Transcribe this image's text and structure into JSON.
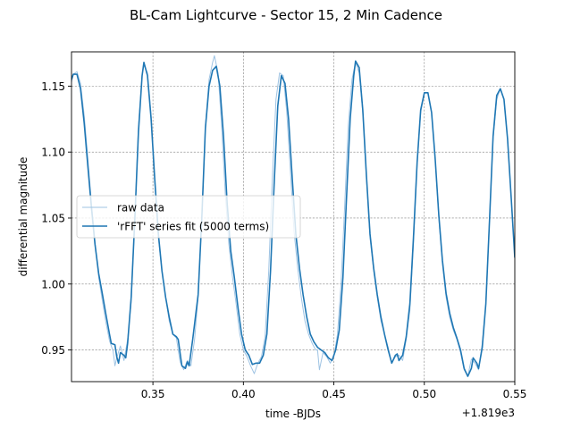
{
  "chart_data": {
    "type": "line",
    "title": "BL-Cam Lightcurve - Sector 15, 2 Min Cadence",
    "xlabel": "time -BJDs",
    "ylabel": "differential magnitude",
    "x_offset_label": "+1.819e3",
    "xlim": [
      0.305,
      0.55
    ],
    "ylim": [
      0.926,
      1.176
    ],
    "x_ticks": [
      0.35,
      0.4,
      0.45,
      0.5,
      0.55
    ],
    "x_tick_labels": [
      "0.35",
      "0.40",
      "0.45",
      "0.50",
      "0.55"
    ],
    "y_ticks": [
      0.95,
      1.0,
      1.05,
      1.1,
      1.15
    ],
    "y_tick_labels": [
      "0.95",
      "1.00",
      "1.05",
      "1.10",
      "1.15"
    ],
    "grid": true,
    "legend_position": "center-left",
    "colors": {
      "raw": "#9ec3e3",
      "fit": "#1f77b4"
    },
    "series": [
      {
        "name": "raw data",
        "points": [
          [
            0.305,
            1.153
          ],
          [
            0.306,
            1.159
          ],
          [
            0.308,
            1.161
          ],
          [
            0.31,
            1.152
          ],
          [
            0.312,
            1.128
          ],
          [
            0.314,
            1.096
          ],
          [
            0.316,
            1.062
          ],
          [
            0.318,
            1.032
          ],
          [
            0.32,
            1.005
          ],
          [
            0.322,
            0.988
          ],
          [
            0.324,
            0.971
          ],
          [
            0.326,
            0.957
          ],
          [
            0.327,
            0.953
          ],
          [
            0.328,
            0.949
          ],
          [
            0.329,
            0.938
          ],
          [
            0.33,
            0.944
          ],
          [
            0.332,
            0.953
          ],
          [
            0.334,
            0.942
          ],
          [
            0.336,
            0.958
          ],
          [
            0.338,
            0.986
          ],
          [
            0.34,
            1.05
          ],
          [
            0.342,
            1.12
          ],
          [
            0.344,
            1.158
          ],
          [
            0.345,
            1.166
          ],
          [
            0.347,
            1.16
          ],
          [
            0.349,
            1.128
          ],
          [
            0.351,
            1.078
          ],
          [
            0.353,
            1.035
          ],
          [
            0.355,
            1.01
          ],
          [
            0.357,
            0.99
          ],
          [
            0.359,
            0.972
          ],
          [
            0.361,
            0.962
          ],
          [
            0.363,
            0.959
          ],
          [
            0.365,
            0.941
          ],
          [
            0.367,
            0.935
          ],
          [
            0.369,
            0.942
          ],
          [
            0.371,
            0.938
          ],
          [
            0.373,
            0.958
          ],
          [
            0.375,
            0.99
          ],
          [
            0.377,
            1.05
          ],
          [
            0.379,
            1.12
          ],
          [
            0.381,
            1.155
          ],
          [
            0.383,
            1.168
          ],
          [
            0.384,
            1.173
          ],
          [
            0.386,
            1.16
          ],
          [
            0.388,
            1.12
          ],
          [
            0.39,
            1.068
          ],
          [
            0.392,
            1.03
          ],
          [
            0.394,
            1.005
          ],
          [
            0.396,
            0.985
          ],
          [
            0.398,
            0.962
          ],
          [
            0.4,
            0.95
          ],
          [
            0.402,
            0.945
          ],
          [
            0.404,
            0.938
          ],
          [
            0.406,
            0.932
          ],
          [
            0.408,
            0.94
          ],
          [
            0.41,
            0.945
          ],
          [
            0.412,
            0.96
          ],
          [
            0.414,
            1.01
          ],
          [
            0.416,
            1.08
          ],
          [
            0.418,
            1.14
          ],
          [
            0.42,
            1.16
          ],
          [
            0.422,
            1.158
          ],
          [
            0.424,
            1.13
          ],
          [
            0.426,
            1.085
          ],
          [
            0.428,
            1.04
          ],
          [
            0.43,
            1.012
          ],
          [
            0.432,
            0.99
          ],
          [
            0.434,
            0.972
          ],
          [
            0.436,
            0.962
          ],
          [
            0.438,
            0.955
          ],
          [
            0.44,
            0.95
          ],
          [
            0.441,
            0.95
          ],
          [
            0.442,
            0.935
          ],
          [
            0.444,
            0.948
          ],
          [
            0.446,
            0.945
          ],
          [
            0.448,
            0.94
          ],
          [
            0.45,
            0.945
          ],
          [
            0.452,
            0.962
          ],
          [
            0.454,
            1.0
          ],
          [
            0.456,
            1.06
          ],
          [
            0.458,
            1.12
          ],
          [
            0.46,
            1.155
          ],
          [
            0.462,
            1.168
          ],
          [
            0.464,
            1.16
          ],
          [
            0.466,
            1.13
          ],
          [
            0.468,
            1.08
          ],
          [
            0.47,
            1.035
          ],
          [
            0.472,
            1.01
          ],
          [
            0.474,
            0.99
          ],
          [
            0.476,
            0.972
          ],
          [
            0.478,
            0.962
          ],
          [
            0.48,
            0.952
          ],
          [
            0.482,
            0.94
          ],
          [
            0.484,
            0.945
          ],
          [
            0.486,
            0.946
          ],
          [
            0.488,
            0.942
          ],
          [
            0.49,
            0.958
          ],
          [
            0.492,
            0.98
          ],
          [
            0.494,
            1.03
          ],
          [
            0.496,
            1.09
          ],
          [
            0.498,
            1.13
          ],
          [
            0.5,
            1.145
          ],
          [
            0.502,
            1.145
          ],
          [
            0.504,
            1.13
          ],
          [
            0.506,
            1.095
          ],
          [
            0.508,
            1.05
          ],
          [
            0.51,
            1.015
          ],
          [
            0.512,
            0.99
          ],
          [
            0.514,
            0.975
          ],
          [
            0.516,
            0.965
          ],
          [
            0.518,
            0.958
          ],
          [
            0.52,
            0.948
          ],
          [
            0.522,
            0.935
          ],
          [
            0.524,
            0.93
          ],
          [
            0.526,
            0.943
          ],
          [
            0.528,
            0.94
          ],
          [
            0.53,
            0.935
          ],
          [
            0.532,
            0.955
          ],
          [
            0.534,
            0.985
          ],
          [
            0.536,
            1.05
          ],
          [
            0.538,
            1.11
          ],
          [
            0.54,
            1.14
          ],
          [
            0.542,
            1.148
          ],
          [
            0.544,
            1.14
          ],
          [
            0.546,
            1.11
          ],
          [
            0.548,
            1.065
          ],
          [
            0.55,
            1.02
          ]
        ]
      },
      {
        "name": "'rFFT' series fit (5000 terms)",
        "points": [
          [
            0.305,
            1.155
          ],
          [
            0.306,
            1.159
          ],
          [
            0.308,
            1.159
          ],
          [
            0.31,
            1.148
          ],
          [
            0.312,
            1.122
          ],
          [
            0.314,
            1.09
          ],
          [
            0.316,
            1.058
          ],
          [
            0.318,
            1.03
          ],
          [
            0.32,
            1.008
          ],
          [
            0.322,
            0.993
          ],
          [
            0.324,
            0.977
          ],
          [
            0.326,
            0.962
          ],
          [
            0.327,
            0.955
          ],
          [
            0.329,
            0.954
          ],
          [
            0.33,
            0.945
          ],
          [
            0.331,
            0.94
          ],
          [
            0.332,
            0.948
          ],
          [
            0.334,
            0.946
          ],
          [
            0.335,
            0.944
          ],
          [
            0.336,
            0.955
          ],
          [
            0.338,
            0.99
          ],
          [
            0.34,
            1.05
          ],
          [
            0.342,
            1.115
          ],
          [
            0.344,
            1.158
          ],
          [
            0.345,
            1.168
          ],
          [
            0.347,
            1.158
          ],
          [
            0.349,
            1.125
          ],
          [
            0.351,
            1.08
          ],
          [
            0.353,
            1.038
          ],
          [
            0.355,
            1.01
          ],
          [
            0.357,
            0.99
          ],
          [
            0.359,
            0.975
          ],
          [
            0.361,
            0.962
          ],
          [
            0.363,
            0.96
          ],
          [
            0.364,
            0.958
          ],
          [
            0.366,
            0.938
          ],
          [
            0.368,
            0.936
          ],
          [
            0.369,
            0.941
          ],
          [
            0.37,
            0.938
          ],
          [
            0.372,
            0.958
          ],
          [
            0.375,
            0.992
          ],
          [
            0.377,
            1.05
          ],
          [
            0.379,
            1.118
          ],
          [
            0.381,
            1.15
          ],
          [
            0.383,
            1.162
          ],
          [
            0.385,
            1.165
          ],
          [
            0.387,
            1.15
          ],
          [
            0.389,
            1.112
          ],
          [
            0.391,
            1.062
          ],
          [
            0.393,
            1.025
          ],
          [
            0.395,
            1.005
          ],
          [
            0.397,
            0.982
          ],
          [
            0.399,
            0.962
          ],
          [
            0.401,
            0.95
          ],
          [
            0.403,
            0.946
          ],
          [
            0.405,
            0.939
          ],
          [
            0.407,
            0.94
          ],
          [
            0.409,
            0.94
          ],
          [
            0.411,
            0.946
          ],
          [
            0.413,
            0.962
          ],
          [
            0.415,
            1.01
          ],
          [
            0.417,
            1.075
          ],
          [
            0.419,
            1.135
          ],
          [
            0.421,
            1.158
          ],
          [
            0.423,
            1.152
          ],
          [
            0.425,
            1.125
          ],
          [
            0.427,
            1.08
          ],
          [
            0.429,
            1.038
          ],
          [
            0.431,
            1.012
          ],
          [
            0.433,
            0.992
          ],
          [
            0.435,
            0.975
          ],
          [
            0.437,
            0.962
          ],
          [
            0.439,
            0.956
          ],
          [
            0.441,
            0.952
          ],
          [
            0.443,
            0.95
          ],
          [
            0.445,
            0.948
          ],
          [
            0.447,
            0.944
          ],
          [
            0.449,
            0.942
          ],
          [
            0.451,
            0.95
          ],
          [
            0.453,
            0.965
          ],
          [
            0.455,
            1.005
          ],
          [
            0.457,
            1.065
          ],
          [
            0.459,
            1.125
          ],
          [
            0.461,
            1.158
          ],
          [
            0.462,
            1.169
          ],
          [
            0.464,
            1.164
          ],
          [
            0.466,
            1.132
          ],
          [
            0.468,
            1.082
          ],
          [
            0.47,
            1.038
          ],
          [
            0.472,
            1.012
          ],
          [
            0.474,
            0.992
          ],
          [
            0.476,
            0.975
          ],
          [
            0.478,
            0.962
          ],
          [
            0.48,
            0.95
          ],
          [
            0.482,
            0.94
          ],
          [
            0.484,
            0.946
          ],
          [
            0.485,
            0.947
          ],
          [
            0.486,
            0.942
          ],
          [
            0.488,
            0.946
          ],
          [
            0.49,
            0.96
          ],
          [
            0.492,
            0.985
          ],
          [
            0.494,
            1.035
          ],
          [
            0.496,
            1.092
          ],
          [
            0.498,
            1.132
          ],
          [
            0.5,
            1.145
          ],
          [
            0.502,
            1.145
          ],
          [
            0.504,
            1.13
          ],
          [
            0.506,
            1.095
          ],
          [
            0.508,
            1.052
          ],
          [
            0.51,
            1.018
          ],
          [
            0.512,
            0.993
          ],
          [
            0.514,
            0.978
          ],
          [
            0.516,
            0.967
          ],
          [
            0.518,
            0.959
          ],
          [
            0.52,
            0.95
          ],
          [
            0.522,
            0.936
          ],
          [
            0.524,
            0.93
          ],
          [
            0.526,
            0.936
          ],
          [
            0.527,
            0.944
          ],
          [
            0.529,
            0.94
          ],
          [
            0.53,
            0.936
          ],
          [
            0.532,
            0.952
          ],
          [
            0.534,
            0.985
          ],
          [
            0.536,
            1.048
          ],
          [
            0.538,
            1.112
          ],
          [
            0.54,
            1.143
          ],
          [
            0.542,
            1.148
          ],
          [
            0.544,
            1.14
          ],
          [
            0.546,
            1.11
          ],
          [
            0.548,
            1.065
          ],
          [
            0.55,
            1.02
          ]
        ]
      }
    ]
  }
}
